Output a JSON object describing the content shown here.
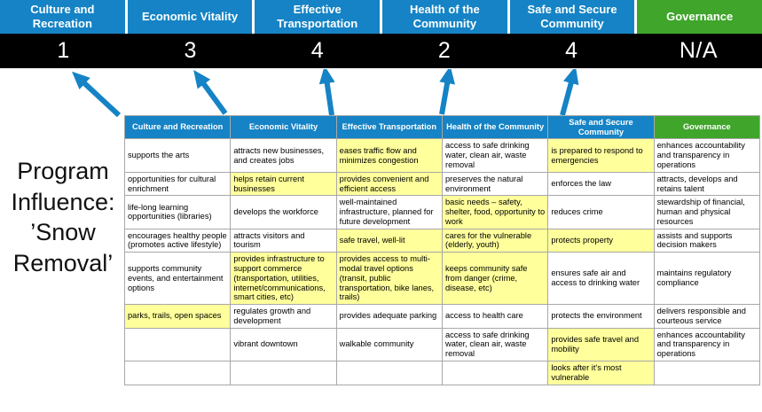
{
  "title": {
    "full_text": "Program Influence: ’Snow Removal’",
    "lines": [
      "Program",
      "Influence:",
      "’Snow",
      "Removal’"
    ]
  },
  "colors": {
    "pillar_blue": "#1583c5",
    "governance_green": "#3fa52b",
    "score_band_background": "#000000",
    "score_text": "#ffffff",
    "highlight_yellow": "#ffff9c",
    "arrow_blue": "#1583c5",
    "table_border_gray": "#a8a8a8"
  },
  "scoreboard": {
    "categories": [
      {
        "label": "Culture and Recreation",
        "score": "1",
        "theme": "blue"
      },
      {
        "label": "Economic Vitality",
        "score": "3",
        "theme": "blue"
      },
      {
        "label": "Effective Transportation",
        "score": "4",
        "theme": "blue"
      },
      {
        "label": "Health of the Community",
        "score": "2",
        "theme": "blue"
      },
      {
        "label": "Safe and Secure Community",
        "score": "4",
        "theme": "blue"
      },
      {
        "label": "Governance",
        "score": "N/A",
        "theme": "green"
      }
    ]
  },
  "matrix": {
    "headers": [
      {
        "label": "Culture and Recreation",
        "theme": "blue"
      },
      {
        "label": "Economic Vitality",
        "theme": "blue"
      },
      {
        "label": "Effective Transportation",
        "theme": "blue"
      },
      {
        "label": "Health of the Community",
        "theme": "blue"
      },
      {
        "label": "Safe and Secure Community",
        "theme": "blue"
      },
      {
        "label": "Governance",
        "theme": "green"
      }
    ],
    "rows": [
      [
        {
          "text": "supports the arts",
          "highlight": false
        },
        {
          "text": "attracts new businesses, and creates jobs",
          "highlight": false
        },
        {
          "text": "eases traffic flow and minimizes congestion",
          "highlight": true
        },
        {
          "text": "access to safe drinking water, clean air, waste removal",
          "highlight": false
        },
        {
          "text": "is prepared to respond to emergencies",
          "highlight": true
        },
        {
          "text": "enhances accountability and transparency in operations",
          "highlight": false
        }
      ],
      [
        {
          "text": "opportunities for cultural enrichment",
          "highlight": false
        },
        {
          "text": "helps retain current businesses",
          "highlight": true
        },
        {
          "text": "provides convenient and efficient access",
          "highlight": true
        },
        {
          "text": "preserves the natural environment",
          "highlight": false
        },
        {
          "text": "enforces the law",
          "highlight": false
        },
        {
          "text": "attracts, develops and retains talent",
          "highlight": false
        }
      ],
      [
        {
          "text": "life-long learning opportunities (libraries)",
          "highlight": false
        },
        {
          "text": "develops the workforce",
          "highlight": false
        },
        {
          "text": "well-maintained infrastructure, planned for future development",
          "highlight": false
        },
        {
          "text": "basic needs – safety, shelter, food, opportunity to work",
          "highlight": true
        },
        {
          "text": "reduces crime",
          "highlight": false
        },
        {
          "text": "stewardship of financial, human and physical resources",
          "highlight": false
        }
      ],
      [
        {
          "text": "encourages healthy people (promotes active lifestyle)",
          "highlight": false
        },
        {
          "text": "attracts visitors and tourism",
          "highlight": false
        },
        {
          "text": "safe travel, well-lit",
          "highlight": true
        },
        {
          "text": "cares for the vulnerable (elderly, youth)",
          "highlight": true
        },
        {
          "text": "protects property",
          "highlight": true
        },
        {
          "text": "assists and supports decision makers",
          "highlight": false
        }
      ],
      [
        {
          "text": "supports community events, and entertainment options",
          "highlight": false
        },
        {
          "text": "provides infrastructure to support commerce (transportation, utilities, internet/communications, smart cities, etc)",
          "highlight": true
        },
        {
          "text": "provides access to multi-modal travel options (transit, public transportation, bike lanes, trails)",
          "highlight": true
        },
        {
          "text": "keeps community safe from danger (crime, disease, etc)",
          "highlight": true
        },
        {
          "text": "ensures safe air and access to drinking water",
          "highlight": false
        },
        {
          "text": "maintains regulatory compliance",
          "highlight": false
        }
      ],
      [
        {
          "text": "parks, trails, open spaces",
          "highlight": true
        },
        {
          "text": "regulates growth and development",
          "highlight": false
        },
        {
          "text": "provides adequate parking",
          "highlight": false
        },
        {
          "text": "access to health care",
          "highlight": false
        },
        {
          "text": "protects the environment",
          "highlight": false
        },
        {
          "text": "delivers responsible and courteous service",
          "highlight": false
        }
      ],
      [
        {
          "text": "",
          "highlight": false
        },
        {
          "text": "vibrant downtown",
          "highlight": false
        },
        {
          "text": "walkable community",
          "highlight": false
        },
        {
          "text": "access to safe drinking water, clean air, waste removal",
          "highlight": false
        },
        {
          "text": "provides safe travel and mobility",
          "highlight": true
        },
        {
          "text": "enhances accountability and transparency in operations",
          "highlight": false
        }
      ],
      [
        {
          "text": "",
          "highlight": false
        },
        {
          "text": "",
          "highlight": false
        },
        {
          "text": "",
          "highlight": false
        },
        {
          "text": "",
          "highlight": false
        },
        {
          "text": "looks after it's most vulnerable",
          "highlight": true
        },
        {
          "text": "",
          "highlight": false
        }
      ]
    ]
  }
}
